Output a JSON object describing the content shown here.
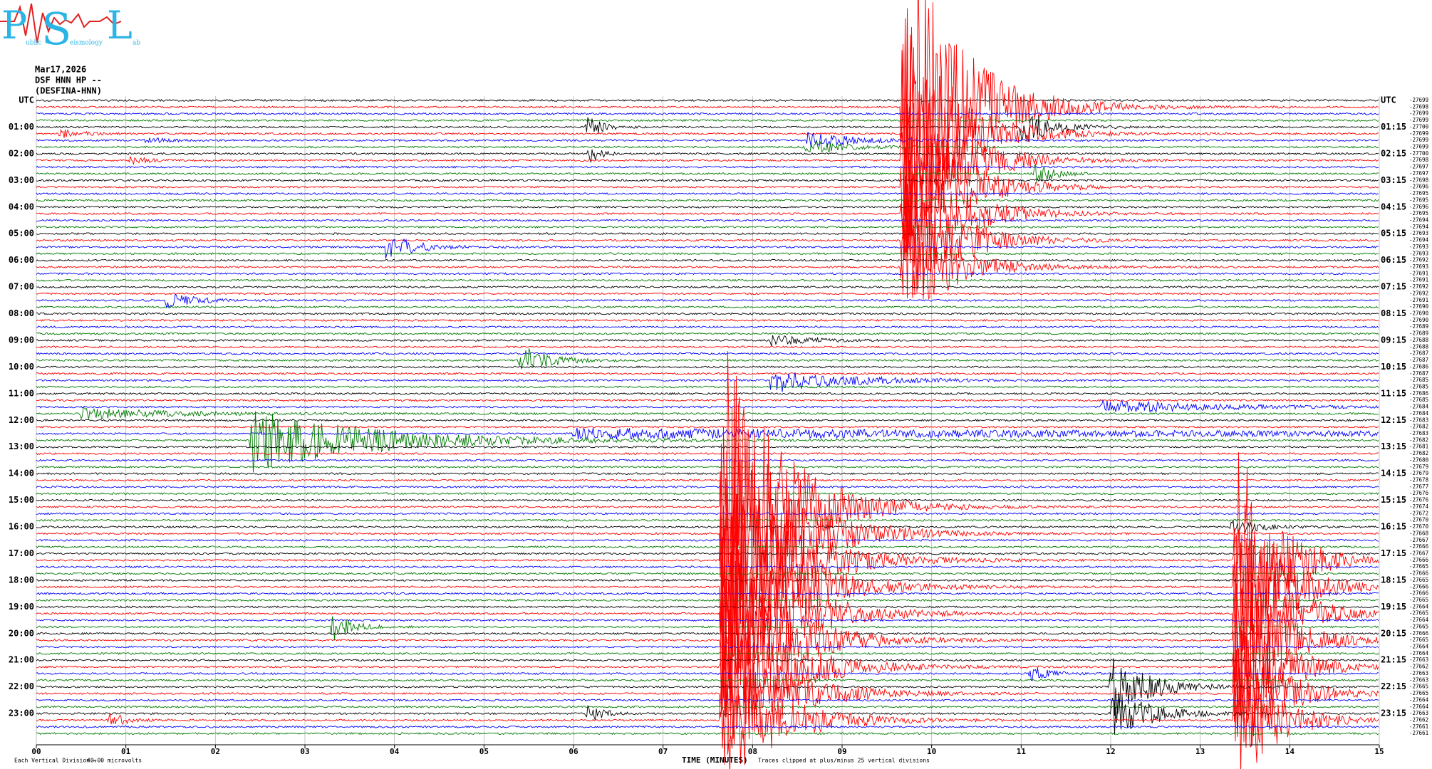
{
  "logo": {
    "letters": [
      "P",
      "S",
      "L"
    ],
    "words": [
      "ublic",
      "eismology",
      "ab"
    ]
  },
  "header": {
    "date": "Mar17,2026",
    "station": "DSF HNN HP --",
    "site": "(DESFINA-HNN)"
  },
  "plot": {
    "left_labels": [
      "UTC",
      "01:00",
      "02:00",
      "03:00",
      "04:00",
      "05:00",
      "06:00",
      "07:00",
      "08:00",
      "09:00",
      "10:00",
      "11:00",
      "12:00",
      "13:00",
      "14:00",
      "15:00",
      "16:00",
      "17:00",
      "18:00",
      "19:00",
      "20:00",
      "21:00",
      "22:00",
      "23:00"
    ],
    "right_labels": [
      "UTC",
      "01:15",
      "02:15",
      "03:15",
      "04:15",
      "05:15",
      "06:15",
      "07:15",
      "08:15",
      "09:15",
      "10:15",
      "11:15",
      "12:15",
      "13:15",
      "14:15",
      "15:15",
      "16:15",
      "17:15",
      "18:15",
      "19:15",
      "20:15",
      "21:15",
      "22:15",
      "23:15"
    ],
    "trace_offsets": [
      -27699,
      -27698,
      -27699,
      -27699,
      -27700,
      -27699,
      -27699,
      -27699,
      -27700,
      -27698,
      -27697,
      -27697,
      -27698,
      -27696,
      -27695,
      -27695,
      -27696,
      -27695,
      -27694,
      -27694,
      -27693,
      -27694,
      -27693,
      -27693,
      -27692,
      -27693,
      -27691,
      -27691,
      -27692,
      -27692,
      -27691,
      -27690,
      -27690,
      -27690,
      -27689,
      -27689,
      -27688,
      -27688,
      -27687,
      -27687,
      -27686,
      -27687,
      -27685,
      -27685,
      -27686,
      -27685,
      -27684,
      -27684,
      -27683,
      -27682,
      -27683,
      -27682,
      -27681,
      -27682,
      -27680,
      -27679,
      -27679,
      -27678,
      -27677,
      -27676,
      -27676,
      -27674,
      -27672,
      -27670,
      -27670,
      -27668,
      -27667,
      -27666,
      -27667,
      -27666,
      -27665,
      -27666,
      -27665,
      -27666,
      -27666,
      -27665,
      -27664,
      -27665,
      -27664,
      -27665,
      -27666,
      -27665,
      -27664,
      -27664,
      -27663,
      -27662,
      -27663,
      -27663,
      -27665,
      -27665,
      -27664,
      -27664,
      -27663,
      -27662,
      -27661,
      -27661
    ],
    "x_ticks": [
      "00",
      "01",
      "02",
      "03",
      "04",
      "05",
      "06",
      "07",
      "08",
      "09",
      "10",
      "11",
      "12",
      "13",
      "14",
      "15"
    ],
    "x_title": "TIME (MINUTES)"
  },
  "footer": {
    "division": "Each Vertical Division =",
    "scale": "40.00 microvolts",
    "clip": "Traces clipped at plus/minus 25 vertical divisions"
  }
}
